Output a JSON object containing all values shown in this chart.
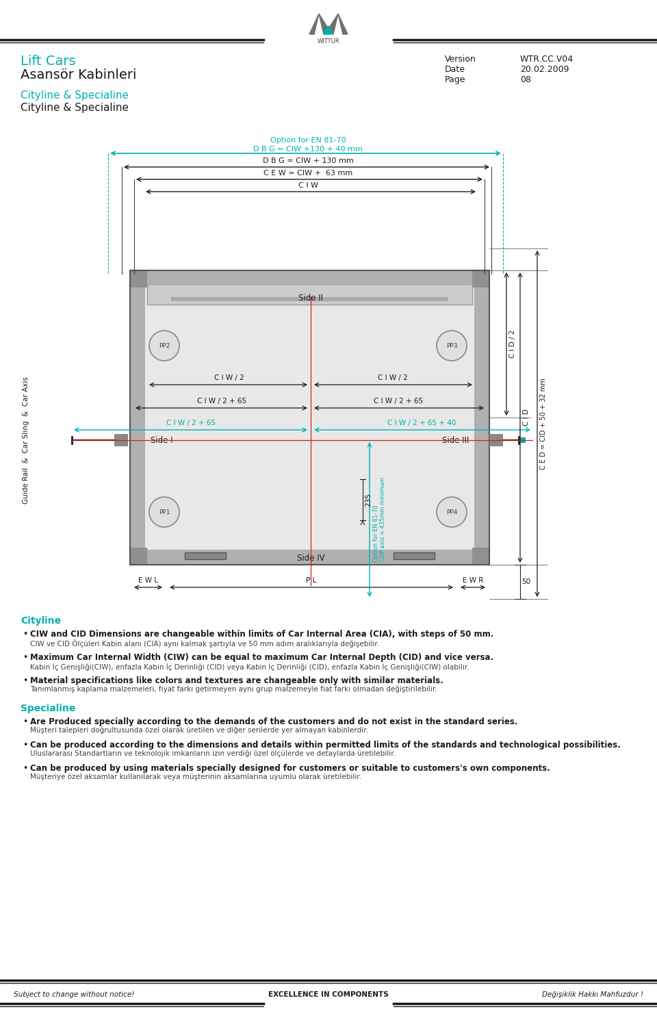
{
  "page_bg": "#ffffff",
  "teal": "#00b0b0",
  "dark_gray": "#404040",
  "light_gray": "#d8d8d8",
  "medium_gray": "#a0a0a0",
  "header_line_color": "#1a1a1a",
  "logo_text": "WITTUR",
  "title_line1": "Lift Cars",
  "title_line2": "Asansör Kabinleri",
  "subtitle_teal": "Cityline & Specialine",
  "subtitle_black": "Cityline & Specialine",
  "version_label": "Version",
  "version_value": "WTR.CC.V04",
  "date_label": "Date",
  "date_value": "20.02.2009",
  "page_label": "Page",
  "page_value": "08",
  "dim_labels": {
    "option_en": "Option for EN 81-70",
    "dbg_plus": "D B G = CIW +130 + 40 mm",
    "dbg": "D B G = CIW + 130 mm",
    "cew": "C E W = CIW +  63 mm",
    "ciw": "C I W",
    "side_ii": "Side II",
    "side_i": "Side I",
    "side_iii": "Side III",
    "side_iv": "Side IV",
    "ciw_half_left": "C I W / 2",
    "ciw_half_right": "C I W / 2",
    "ciw_65_left": "C I W / 2 + 65",
    "ciw_65_right": "C I W / 2 + 65",
    "ciw_65_teal_left": "C I W / 2 + 65",
    "ciw_65_40_teal_right": "C I W / 2 + 65 + 40",
    "cid_half": "C I D / 2",
    "cid": "C I D",
    "ced": "C E D = CID + 50 + 32 mm",
    "cop_option": "Option for EN 81-70\nCOP axis = 435mm minimum",
    "dim_235": "235",
    "dim_50": "50",
    "ewl": "E W L",
    "pl": "P L",
    "ewr": "E W R",
    "pp1": "PP1",
    "pp2": "PP2",
    "pp3": "PP3",
    "pp4": "PP4",
    "guide_rail": "Guide Rail  &  Car Sling  &  Car Axis"
  },
  "cityline_title": "Cityline",
  "cityline_bullets": [
    [
      "CIW and CID Dimensions are changeable within limits of Car Internal Area (CIA), with steps of 50 mm.",
      "CIW ve CID Ölçüleri Kabin alanı (CIA) aynı kalmak şartıyla ve 50 mm adım aralıklarıyla değişebilir."
    ],
    [
      "Maximum Car Internal Width (CIW) can be equal to maximum Car Internal Depth (CID) and vice versa.",
      "Kabin İç Genişliği(CIW), enfazla Kabin İç Derinliği (CID) veya Kabin İç Derinliği (CID), enfazla Kabin İç Genişliği(CIW) olabilir."
    ],
    [
      "Material specifications like colors and textures are changeable only with similar materials.",
      "Tanımlanmış kaplama malzemeleri, fiyat farkı getirmeyen aynı grup malzemeyle fiat farkı olmadan değiştirilebilir."
    ]
  ],
  "specialine_title": "Specialine",
  "specialine_bullets": [
    [
      "Are Produced specially according to the demands of the customers and do not exist in the standard series.",
      "Müşteri talepleri doğrultusunda özel olarak üretilen ve diğer serilerde yer almayan kabinlerdir."
    ],
    [
      "Can be produced according to the dimensions and details within permitted limits of the standards and technological possibilities.",
      "Uluslararası Standartların ve teknolojik imkanların izin verdiği özel ölçülerde ve detaylarda üretilebilir."
    ],
    [
      "Can be produced by using materials specially designed for customers or suitable to customers's own components.",
      "Müşteriye özel aksamlar kullanılarak veya müşterinin aksamlarına uyumlu olarak üretilebilir."
    ]
  ],
  "footer_left": "Subject to change without notice!",
  "footer_center": "EXCELLENCE IN COMPONENTS",
  "footer_right": "Değişiklik Hakkı Mahfuzdur !"
}
